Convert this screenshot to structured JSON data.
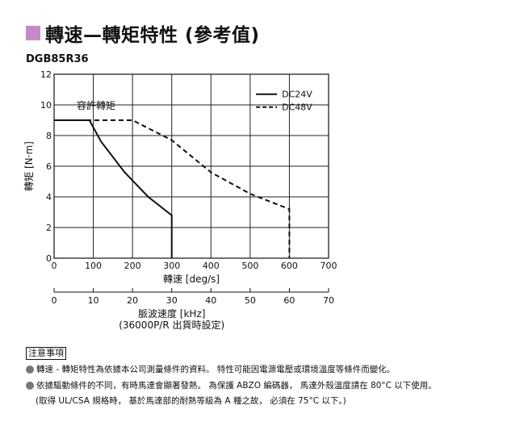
{
  "title": "轉速—轉矩特性 (參考值)",
  "accent_color": "#c48bc6",
  "model": "DGB85R36",
  "chart_data": {
    "type": "line",
    "ylabel": "轉矩 [N·m]",
    "xlabel": "轉速 [deg/s]",
    "xlim": [
      0,
      700
    ],
    "ylim": [
      0,
      12
    ],
    "xticks": [
      "0",
      "100",
      "200",
      "300",
      "400",
      "500",
      "600",
      "700"
    ],
    "yticks": [
      "0",
      "2",
      "4",
      "6",
      "8",
      "10",
      "12"
    ],
    "grid": true,
    "legend_placement": "top-right",
    "annotation": "容許轉矩",
    "permissible_torque": 9,
    "series": [
      {
        "name": "DC24V",
        "style": "solid",
        "x": [
          0,
          90,
          120,
          180,
          240,
          300,
          300
        ],
        "y": [
          9,
          9,
          7.6,
          5.6,
          4.0,
          2.8,
          0
        ]
      },
      {
        "name": "DC48V",
        "style": "dashed",
        "x": [
          0,
          200,
          300,
          400,
          500,
          600,
          600
        ],
        "y": [
          9,
          9,
          7.7,
          5.6,
          4.2,
          3.2,
          0
        ]
      }
    ],
    "secondary_axis": {
      "label": "脈波速度 [kHz]",
      "sublabel": "(36000P/R 出貨時設定)",
      "ticks": [
        "0",
        "10",
        "20",
        "30",
        "40",
        "50",
        "60",
        "70"
      ],
      "range": [
        0,
        70
      ]
    }
  },
  "notes": {
    "header": "注意事項",
    "items": [
      "轉速 - 轉矩特性為依據本公司測量條件的資料。 特性可能因電源電壓或環境溫度等條件而變化。",
      "依據驅動條件的不同，有時馬達會顯著發熱。 為保護 ABZO 編碼器， 馬達外殼溫度請在 80°C 以下使用。"
    ],
    "sub": "(取得 UL/CSA 規格時， 基於馬達部的耐熱等級為 A 種之故， 必須在 75°C 以下。)"
  }
}
